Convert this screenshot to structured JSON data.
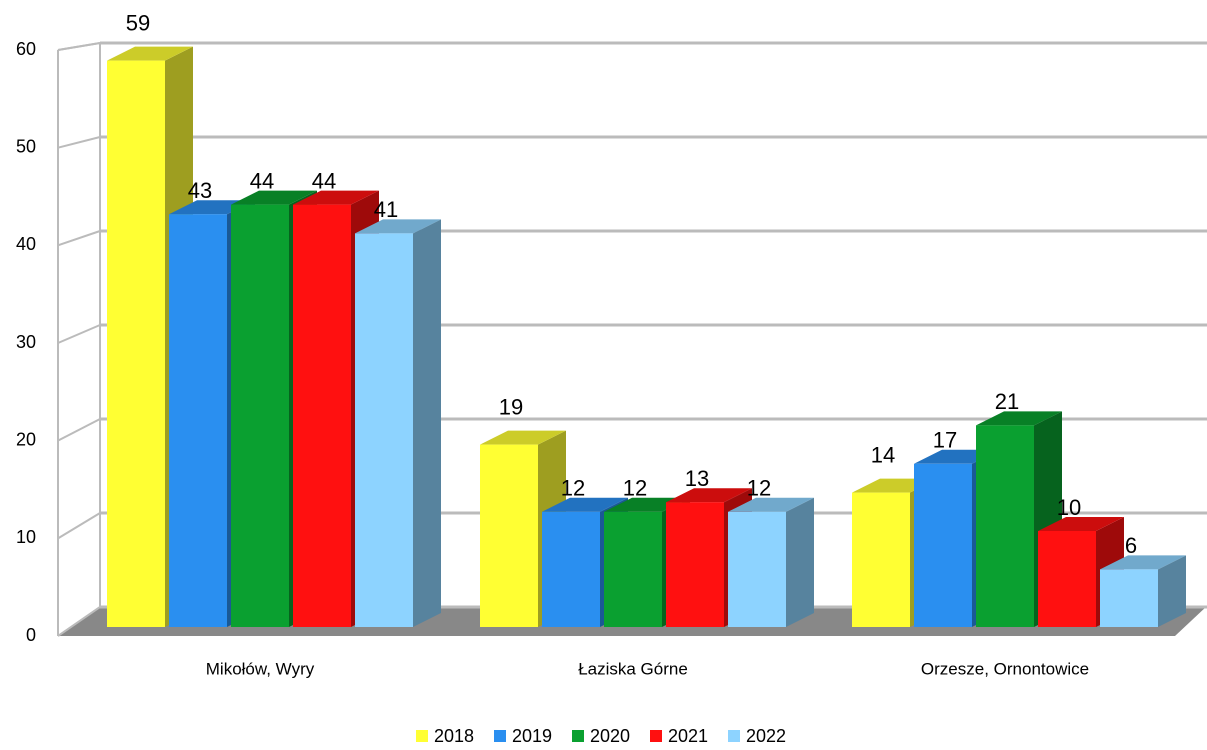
{
  "chart_data": {
    "type": "bar3d",
    "categories": [
      "Mikołów, Wyry",
      "Łaziska Górne",
      "Orzesze, Ornontowice"
    ],
    "series": [
      {
        "name": "2018",
        "color": "#ffff33",
        "values": [
          59,
          19,
          14
        ]
      },
      {
        "name": "2019",
        "color": "#2a8ff0",
        "values": [
          43,
          12,
          17
        ]
      },
      {
        "name": "2020",
        "color": "#0aa030",
        "values": [
          44,
          12,
          21
        ]
      },
      {
        "name": "2021",
        "color": "#ff1010",
        "values": [
          44,
          13,
          10
        ]
      },
      {
        "name": "2022",
        "color": "#8dd3ff",
        "values": [
          41,
          12,
          6
        ]
      }
    ],
    "ylim": [
      0,
      60
    ],
    "yticks": [
      0,
      10,
      20,
      30,
      40,
      50,
      60
    ],
    "grid": true,
    "legend": "bottom"
  }
}
